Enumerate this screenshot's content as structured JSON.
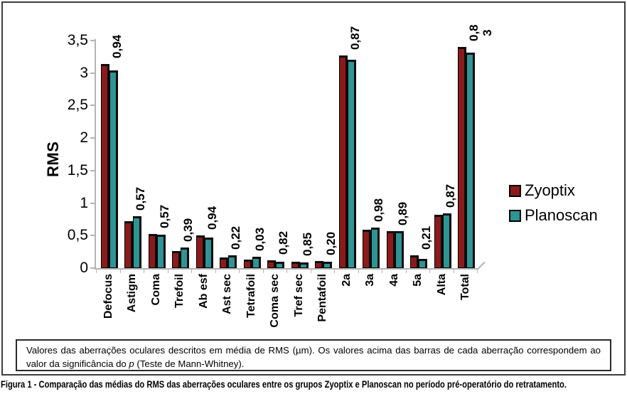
{
  "chart_data": {
    "type": "bar",
    "title": "",
    "ylabel": "RMS",
    "xlabel": "",
    "ylim": [
      0,
      3.5
    ],
    "ytick_labels": [
      "0",
      "0,5",
      "1",
      "1,5",
      "2",
      "2,5",
      "3",
      "3,5"
    ],
    "grid": false,
    "legend_position": "right",
    "categories": [
      "Defocus",
      "Astigm",
      "Coma",
      "Trefoil",
      "Ab esf",
      "Ast sec",
      "Tetrafoil",
      "Coma sec",
      "Tref sec",
      "Pentafoil",
      "2a",
      "3a",
      "4a",
      "5a",
      "Alta",
      "Total"
    ],
    "series": [
      {
        "name": "Zyoptix",
        "color": "#8B1B1B",
        "values": [
          3.1,
          0.68,
          0.48,
          0.22,
          0.46,
          0.12,
          0.09,
          0.08,
          0.06,
          0.07,
          3.23,
          0.55,
          0.53,
          0.15,
          0.78,
          3.36
        ]
      },
      {
        "name": "Planoscan",
        "color": "#2E9494",
        "values": [
          3.0,
          0.75,
          0.47,
          0.27,
          0.43,
          0.15,
          0.13,
          0.05,
          0.04,
          0.05,
          3.16,
          0.58,
          0.52,
          0.1,
          0.8,
          3.27
        ]
      }
    ],
    "p_value_labels": [
      "0,94",
      "0,57",
      "0,57",
      "0,39",
      "0,94",
      "0,22",
      "0,03",
      "0,82",
      "0,85",
      "0,20",
      "0,87",
      "0,98",
      "0,89",
      "0,21",
      "0,87",
      "0,8\n3"
    ],
    "p_values_note": "labels above bars are Mann-Whitney p significance values"
  },
  "legend": {
    "items": [
      {
        "label": "Zyoptix",
        "color": "#8B1B1B"
      },
      {
        "label": "Planoscan",
        "color": "#2E9494"
      }
    ]
  },
  "note_box": {
    "part1": "Valores das aberrações oculares descritos em média de RMS (µm). Os valores acima das barras de cada aberração correspondem ao valor da significância do ",
    "italic": "p",
    "part2": " (Teste de Mann-Whitney)."
  },
  "figure_caption": "Figura 1 - Comparação das médias do RMS das aberrações oculares entre os grupos Zyoptix e Planoscan no período pré-operatório do retratamento.",
  "colors": {
    "bar_edge": "#000000",
    "axis": "#b4b4b4",
    "border": "#3c3c3c"
  }
}
